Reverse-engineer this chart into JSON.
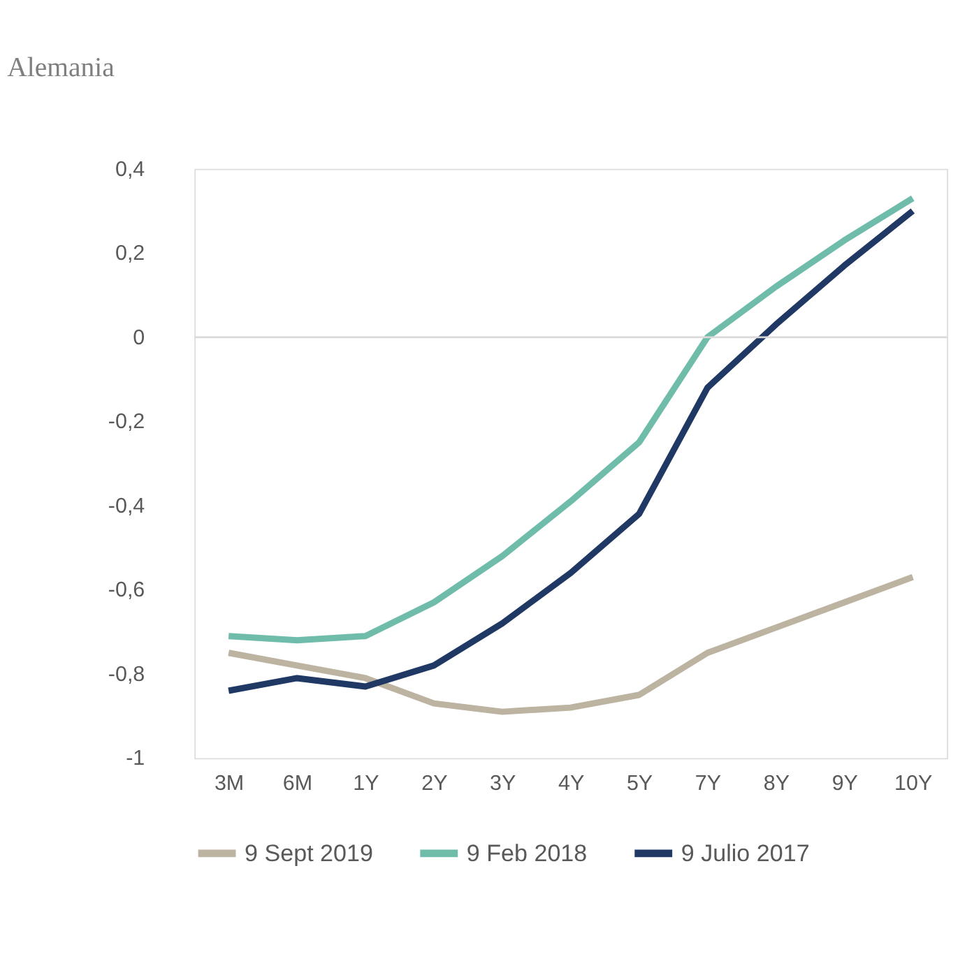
{
  "chart_data": {
    "type": "line",
    "title": "Alemania",
    "categories": [
      "3M",
      "6M",
      "1Y",
      "2Y",
      "3Y",
      "4Y",
      "5Y",
      "7Y",
      "8Y",
      "9Y",
      "10Y"
    ],
    "series": [
      {
        "name": "9  Sept 2019",
        "color": "#bcb3a1",
        "values": [
          -0.75,
          -0.78,
          -0.81,
          -0.87,
          -0.89,
          -0.88,
          -0.85,
          -0.75,
          -0.69,
          -0.63,
          -0.57
        ]
      },
      {
        "name": "9  Feb 2018",
        "color": "#6fbcab",
        "values": [
          -0.71,
          -0.72,
          -0.71,
          -0.63,
          -0.52,
          -0.39,
          -0.25,
          0.0,
          0.12,
          0.23,
          0.33
        ]
      },
      {
        "name": "9  Julio 2017",
        "color": "#1f3864",
        "values": [
          -0.84,
          -0.81,
          -0.83,
          -0.78,
          -0.68,
          -0.56,
          -0.42,
          -0.12,
          0.03,
          0.17,
          0.3
        ]
      }
    ],
    "ylim": [
      -1,
      0.4
    ],
    "yticks": [
      {
        "value": -1,
        "label": "-1"
      },
      {
        "value": -0.8,
        "label": "-0,8"
      },
      {
        "value": -0.6,
        "label": "-0,6"
      },
      {
        "value": -0.4,
        "label": "-0,4"
      },
      {
        "value": -0.2,
        "label": "-0,2"
      },
      {
        "value": 0,
        "label": "0"
      },
      {
        "value": 0.2,
        "label": "0,2"
      },
      {
        "value": 0.4,
        "label": "0,4"
      }
    ],
    "ref_lines": [
      {
        "axis": "y",
        "value": 0,
        "label": null,
        "color": "#d9d9d9"
      }
    ],
    "grid": false,
    "legend": "bottom",
    "marker": "none",
    "line_style": "solid"
  }
}
